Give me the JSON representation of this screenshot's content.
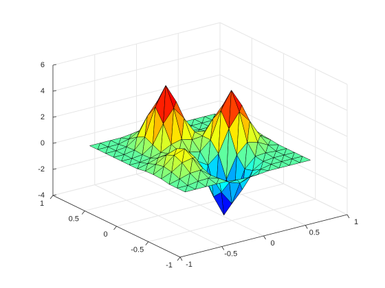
{
  "chart_data": {
    "type": "surface",
    "x": [
      -0.75,
      -0.625,
      -0.5,
      -0.375,
      -0.25,
      -0.125,
      0,
      0.125,
      0.25,
      0.375,
      0.5,
      0.625,
      0.75
    ],
    "y": [
      -0.75,
      -0.625,
      -0.5,
      -0.375,
      -0.25,
      -0.125,
      0,
      0.125,
      0.25,
      0.375,
      0.5,
      0.625,
      0.75
    ],
    "z": [
      [
        0,
        0,
        0,
        0,
        0,
        -0.08,
        -0.12,
        -0.08,
        0,
        0,
        0,
        0,
        0
      ],
      [
        0,
        0,
        0.12,
        0.15,
        -0.06,
        -0.57,
        -0.84,
        -0.57,
        -0.18,
        0,
        0,
        0,
        0
      ],
      [
        0,
        0.2,
        0.44,
        0.48,
        -0.13,
        -1.63,
        -2.71,
        -1.83,
        -0.57,
        -0.08,
        0,
        0,
        0
      ],
      [
        0.12,
        0.44,
        0.95,
        1.11,
        0.11,
        -2.27,
        -3.88,
        -2.71,
        -0.76,
        0.01,
        0.08,
        0,
        0
      ],
      [
        0.15,
        0.56,
        1.23,
        1.52,
        0.66,
        -1.27,
        -2.56,
        -1.65,
        0.03,
        0.8,
        0.6,
        0.18,
        0
      ],
      [
        0.12,
        0.44,
        0.95,
        1.23,
        0.77,
        -0.13,
        -0.64,
        0.03,
        1.74,
        2.84,
        1.92,
        0.6,
        0.08
      ],
      [
        0,
        0.2,
        0.44,
        0.56,
        0.53,
        0.26,
        0.1,
        0.8,
        2.84,
        4.2,
        2.84,
        0.88,
        0.13
      ],
      [
        0,
        0,
        0.12,
        0.35,
        0.76,
        0.95,
        0.72,
        0.8,
        1.92,
        2.84,
        1.92,
        0.6,
        0.08
      ],
      [
        0,
        0,
        0.09,
        0.64,
        2.06,
        3.05,
        2.06,
        0.82,
        0.69,
        0.88,
        0.6,
        0.18,
        0
      ],
      [
        0,
        0,
        0.14,
        0.95,
        3.05,
        4.5,
        3.05,
        0.95,
        0.22,
        0.13,
        0.08,
        0,
        0
      ],
      [
        0,
        0,
        0.09,
        0.64,
        2.06,
        3.05,
        2.06,
        0.64,
        0.09,
        0,
        0,
        0,
        0
      ],
      [
        0,
        0,
        0,
        0.2,
        0.64,
        0.95,
        0.64,
        0.2,
        0,
        0,
        0,
        0,
        0
      ],
      [
        0,
        0,
        0,
        0,
        0.09,
        0.14,
        0.09,
        0,
        0,
        0,
        0,
        0,
        0
      ]
    ],
    "colormap": "jet",
    "edge_color": "#000000",
    "xlim": [
      -1,
      1
    ],
    "ylim": [
      -1,
      1
    ],
    "zlim": [
      -4,
      6
    ],
    "xticks": [
      -1,
      -0.5,
      0,
      0.5,
      1
    ],
    "yticks": [
      -1,
      -0.5,
      0,
      0.5,
      1
    ],
    "zticks": [
      -4,
      -2,
      0,
      2,
      4,
      6
    ],
    "grid": true
  }
}
